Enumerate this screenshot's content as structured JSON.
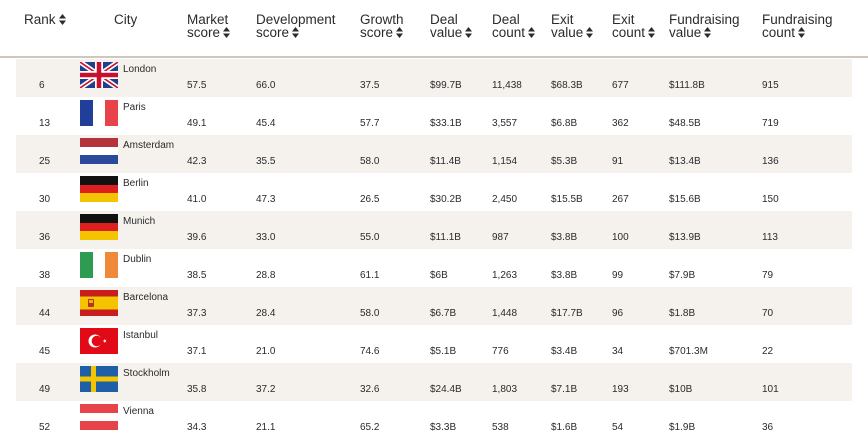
{
  "columns": [
    {
      "key": "rank",
      "line1": "Rank",
      "line2": "",
      "sortable": true
    },
    {
      "key": "city",
      "line1": "City",
      "line2": "",
      "sortable": false
    },
    {
      "key": "market",
      "line1": "Market",
      "line2": "score",
      "sortable": true
    },
    {
      "key": "development",
      "line1": "Development",
      "line2": "score",
      "sortable": true
    },
    {
      "key": "growth",
      "line1": "Growth",
      "line2": "score",
      "sortable": true
    },
    {
      "key": "deal_value",
      "line1": "Deal",
      "line2": "value",
      "sortable": true
    },
    {
      "key": "deal_count",
      "line1": "Deal",
      "line2": "count",
      "sortable": true
    },
    {
      "key": "exit_value",
      "line1": "Exit",
      "line2": "value",
      "sortable": true
    },
    {
      "key": "exit_count",
      "line1": "Exit",
      "line2": "count",
      "sortable": true
    },
    {
      "key": "fund_value",
      "line1": "Fundraising",
      "line2": "value",
      "sortable": true
    },
    {
      "key": "fund_count",
      "line1": "Fundraising",
      "line2": "count",
      "sortable": true
    }
  ],
  "rows": [
    {
      "rank": "6",
      "city": "London",
      "flag": "uk",
      "market": "57.5",
      "development": "66.0",
      "growth": "37.5",
      "deal_value": "$99.7B",
      "deal_count": "11,438",
      "exit_value": "$68.3B",
      "exit_count": "677",
      "fund_value": "$111.8B",
      "fund_count": "915"
    },
    {
      "rank": "13",
      "city": "Paris",
      "flag": "france",
      "market": "49.1",
      "development": "45.4",
      "growth": "57.7",
      "deal_value": "$33.1B",
      "deal_count": "3,557",
      "exit_value": "$6.8B",
      "exit_count": "362",
      "fund_value": "$48.5B",
      "fund_count": "719"
    },
    {
      "rank": "25",
      "city": "Amsterdam",
      "flag": "netherlands",
      "market": "42.3",
      "development": "35.5",
      "growth": "58.0",
      "deal_value": "$11.4B",
      "deal_count": "1,154",
      "exit_value": "$5.3B",
      "exit_count": "91",
      "fund_value": "$13.4B",
      "fund_count": "136"
    },
    {
      "rank": "30",
      "city": "Berlin",
      "flag": "germany",
      "market": "41.0",
      "development": "47.3",
      "growth": "26.5",
      "deal_value": "$30.2B",
      "deal_count": "2,450",
      "exit_value": "$15.5B",
      "exit_count": "267",
      "fund_value": "$15.6B",
      "fund_count": "150"
    },
    {
      "rank": "36",
      "city": "Munich",
      "flag": "germany",
      "market": "39.6",
      "development": "33.0",
      "growth": "55.0",
      "deal_value": "$11.1B",
      "deal_count": "987",
      "exit_value": "$3.8B",
      "exit_count": "100",
      "fund_value": "$13.9B",
      "fund_count": "113"
    },
    {
      "rank": "38",
      "city": "Dublin",
      "flag": "ireland",
      "market": "38.5",
      "development": "28.8",
      "growth": "61.1",
      "deal_value": "$6B",
      "deal_count": "1,263",
      "exit_value": "$3.8B",
      "exit_count": "99",
      "fund_value": "$7.9B",
      "fund_count": "79"
    },
    {
      "rank": "44",
      "city": "Barcelona",
      "flag": "spain",
      "market": "37.3",
      "development": "28.4",
      "growth": "58.0",
      "deal_value": "$6.7B",
      "deal_count": "1,448",
      "exit_value": "$17.7B",
      "exit_count": "96",
      "fund_value": "$1.8B",
      "fund_count": "70"
    },
    {
      "rank": "45",
      "city": "Istanbul",
      "flag": "turkey",
      "market": "37.1",
      "development": "21.0",
      "growth": "74.6",
      "deal_value": "$5.1B",
      "deal_count": "776",
      "exit_value": "$3.4B",
      "exit_count": "34",
      "fund_value": "$701.3M",
      "fund_count": "22"
    },
    {
      "rank": "49",
      "city": "Stockholm",
      "flag": "sweden",
      "market": "35.8",
      "development": "37.2",
      "growth": "32.6",
      "deal_value": "$24.4B",
      "deal_count": "1,803",
      "exit_value": "$7.1B",
      "exit_count": "193",
      "fund_value": "$10B",
      "fund_count": "101"
    },
    {
      "rank": "52",
      "city": "Vienna",
      "flag": "austria",
      "market": "34.3",
      "development": "21.1",
      "growth": "65.2",
      "deal_value": "$3.3B",
      "deal_count": "538",
      "exit_value": "$1.6B",
      "exit_count": "54",
      "fund_value": "$1.9B",
      "fund_count": "36"
    }
  ],
  "colors": {
    "row_alt": "#f5f1ed",
    "header_rule": "#cfc6bd",
    "text": "#2b2b2b"
  }
}
